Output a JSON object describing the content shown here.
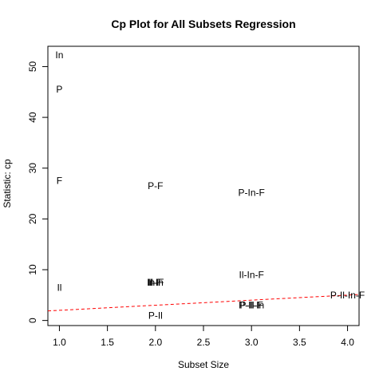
{
  "chart_data": {
    "type": "scatter",
    "title": "Cp Plot for All Subsets Regression",
    "xlabel": "Subset Size",
    "ylabel": "Statistic: cp",
    "xlim": [
      0.88,
      4.12
    ],
    "ylim": [
      -1,
      54
    ],
    "xticks": [
      "1.0",
      "1.5",
      "2.0",
      "2.5",
      "3.0",
      "3.5",
      "4.0"
    ],
    "xtick_values": [
      1.0,
      1.5,
      2.0,
      2.5,
      3.0,
      3.5,
      4.0
    ],
    "yticks": [
      "0",
      "10",
      "20",
      "30",
      "40",
      "50"
    ],
    "ytick_values": [
      0,
      10,
      20,
      30,
      40,
      50
    ],
    "grid": false,
    "reference_line": {
      "x": [
        0.88,
        4.12
      ],
      "y": [
        1.88,
        5.12
      ],
      "color": "#ff0000",
      "style": "dashed"
    },
    "points": [
      {
        "label": "In",
        "x": 1,
        "y": 52.3
      },
      {
        "label": "P",
        "x": 1,
        "y": 45.5
      },
      {
        "label": "F",
        "x": 1,
        "y": 27.5
      },
      {
        "label": "Il",
        "x": 1,
        "y": 6.5
      },
      {
        "label": "P-F",
        "x": 2,
        "y": 26.5
      },
      {
        "label": "Il-In",
        "x": 2,
        "y": 7.5
      },
      {
        "label": "Il-F",
        "x": 2,
        "y": 7.5
      },
      {
        "label": "In-F",
        "x": 2,
        "y": 7.5
      },
      {
        "label": "P-Il",
        "x": 2,
        "y": 1.0
      },
      {
        "label": "P-In-F",
        "x": 3,
        "y": 25.2
      },
      {
        "label": "Il-In-F",
        "x": 3,
        "y": 9.0
      },
      {
        "label": "P-Il-In",
        "x": 3,
        "y": 3.0
      },
      {
        "label": "P-Il-F",
        "x": 3,
        "y": 3.0
      },
      {
        "label": "P-Il-In-F",
        "x": 4,
        "y": 5.0
      }
    ]
  }
}
